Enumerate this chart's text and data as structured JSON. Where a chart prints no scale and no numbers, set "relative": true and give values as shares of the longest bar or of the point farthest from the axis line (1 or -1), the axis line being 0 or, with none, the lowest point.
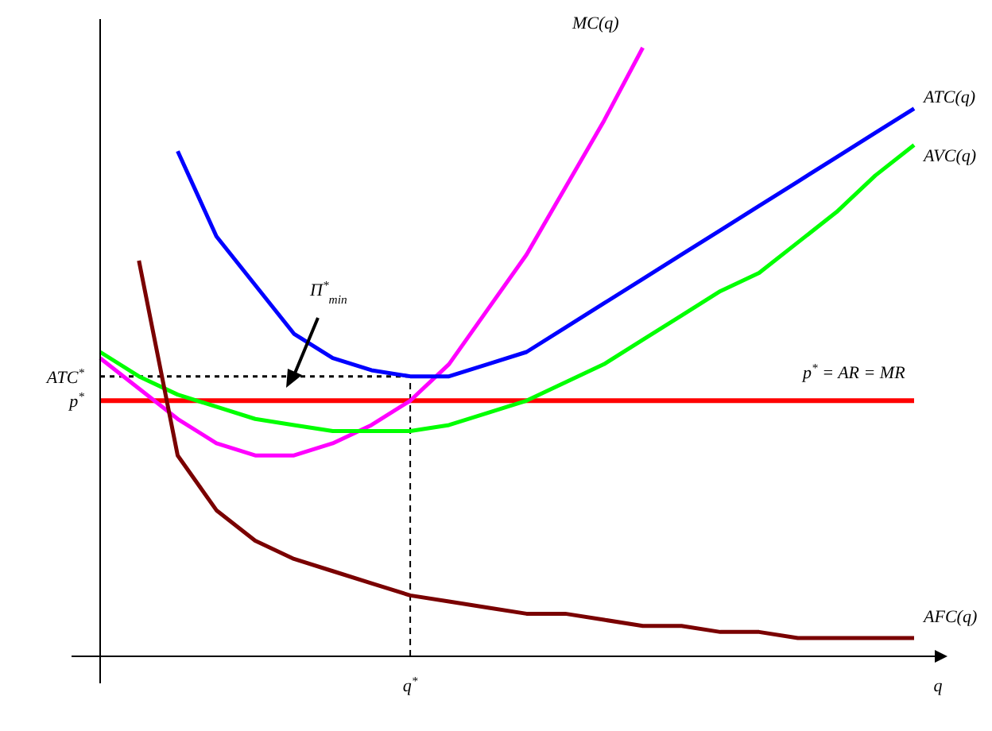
{
  "chart_data": {
    "type": "line",
    "relative": true,
    "xlabel": "q",
    "categories": [
      null,
      null,
      null,
      null,
      null,
      null,
      null,
      null,
      null,
      null,
      null,
      null,
      null,
      null,
      null,
      null,
      null,
      null,
      null,
      null,
      null,
      null
    ],
    "series": [
      {
        "name": "MC(q)",
        "color": "#ff00ff",
        "values": [
          0.49,
          0.44,
          0.39,
          0.35,
          0.33,
          0.33,
          0.35,
          0.38,
          0.42,
          0.48,
          0.57,
          0.66,
          0.77,
          0.88,
          1.0,
          null,
          null,
          null,
          null,
          null,
          null,
          null
        ]
      },
      {
        "name": "ATC(q)",
        "color": "#0000ff",
        "values": [
          null,
          null,
          0.83,
          0.69,
          0.61,
          0.53,
          0.49,
          0.47,
          0.46,
          0.46,
          0.48,
          0.5,
          0.54,
          0.58,
          0.62,
          0.66,
          0.7,
          0.74,
          0.78,
          0.82,
          0.86,
          0.9
        ]
      },
      {
        "name": "AVC(q)",
        "color": "#00ff00",
        "values": [
          0.5,
          0.46,
          0.43,
          0.41,
          0.39,
          0.38,
          0.37,
          0.37,
          0.37,
          0.38,
          0.4,
          0.42,
          0.45,
          0.48,
          0.52,
          0.56,
          0.6,
          0.63,
          0.68,
          0.73,
          0.79,
          0.84
        ]
      },
      {
        "name": "AFC(q)",
        "color": "#7a0000",
        "values": [
          null,
          0.65,
          0.33,
          0.24,
          0.19,
          0.16,
          0.14,
          0.12,
          0.1,
          0.09,
          0.08,
          0.07,
          0.07,
          0.06,
          0.05,
          0.05,
          0.04,
          0.04,
          0.03,
          0.03,
          0.03,
          0.03
        ]
      }
    ],
    "ref_lines": [
      {
        "axis": "y",
        "value": 0.42,
        "label": "p$^{*}$",
        "color": "#ff0000",
        "line_style": "solid"
      },
      {
        "axis": "y",
        "value": 0.46,
        "label": "ATC$^{*}$",
        "color": "#000000",
        "line_style": "dotted"
      },
      {
        "axis": "x",
        "value": null,
        "label": "q$^{*}$",
        "color": "#000000",
        "line_style": "dashed"
      }
    ],
    "annotations": [
      "p$^{*}$ = AR = MR",
      "Π$^{*}$$_{min}$"
    ],
    "legend": false,
    "grid": false,
    "marker": "none"
  }
}
